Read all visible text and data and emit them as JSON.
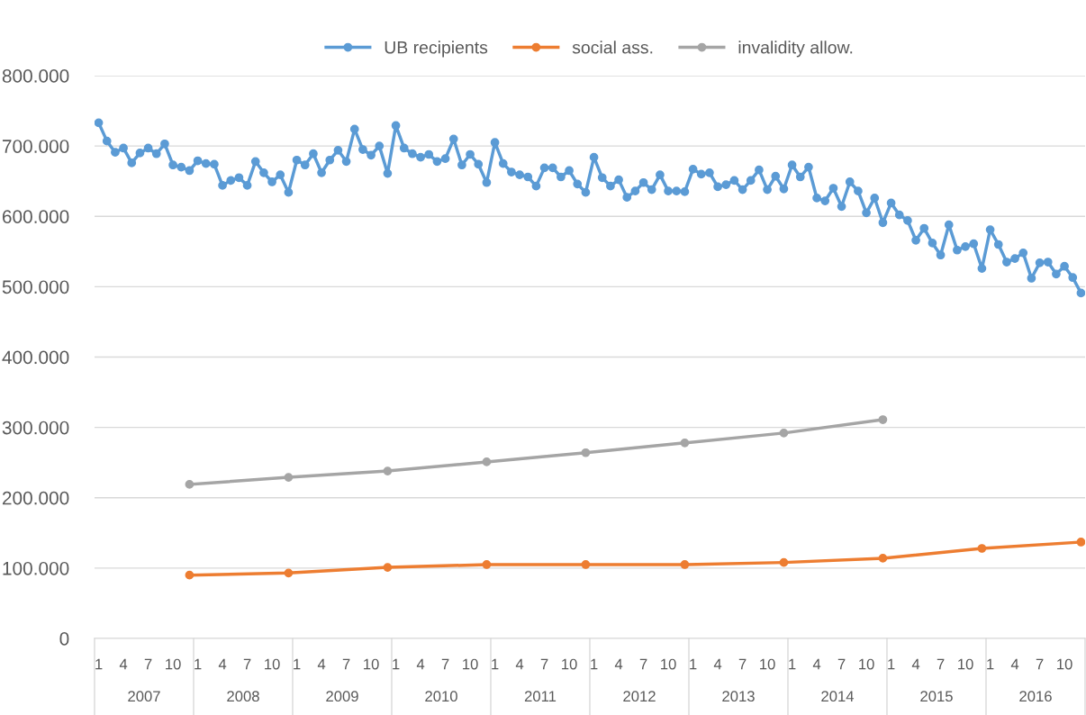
{
  "chart_data": {
    "type": "line",
    "categories": [
      "1",
      null,
      null,
      "4",
      null,
      null,
      "7",
      null,
      null,
      "10",
      null,
      null,
      "1",
      null,
      null,
      "4",
      null,
      null,
      "7",
      null,
      null,
      "10",
      null,
      null,
      "1",
      null,
      null,
      "4",
      null,
      null,
      "7",
      null,
      null,
      "10",
      null,
      null,
      "1",
      null,
      null,
      "4",
      null,
      null,
      "7",
      null,
      null,
      "10",
      null,
      null,
      "1",
      null,
      null,
      "4",
      null,
      null,
      "7",
      null,
      null,
      "10",
      null,
      null,
      "1",
      null,
      null,
      "4",
      null,
      null,
      "7",
      null,
      null,
      "10",
      null,
      null,
      "1",
      null,
      null,
      "4",
      null,
      null,
      "7",
      null,
      null,
      "10",
      null,
      null,
      "1",
      null,
      null,
      "4",
      null,
      null,
      "7",
      null,
      null,
      "10",
      null,
      null,
      "1",
      null,
      null,
      "4",
      null,
      null,
      "7",
      null,
      null,
      "10",
      null,
      null,
      "1",
      null,
      null,
      "4",
      null,
      null,
      "7",
      null,
      null,
      "10",
      null,
      null
    ],
    "annotations": [
      "2007",
      "2008",
      "2009",
      "2010",
      "2011",
      "2012",
      "2013",
      "2014",
      "2015",
      "2016"
    ],
    "series": [
      {
        "name": "UB recipients",
        "color": "#5b9bd5",
        "values": [
          733000,
          707000,
          691000,
          697000,
          676000,
          690000,
          697000,
          689000,
          703000,
          673000,
          670000,
          665000,
          679000,
          675000,
          674000,
          644000,
          651000,
          655000,
          644000,
          678000,
          662000,
          649000,
          659000,
          634000,
          680000,
          673000,
          689000,
          662000,
          680000,
          694000,
          678000,
          724000,
          695000,
          687000,
          700000,
          661000,
          729000,
          697000,
          689000,
          684000,
          688000,
          678000,
          682000,
          710000,
          673000,
          688000,
          674000,
          648000,
          705000,
          675000,
          663000,
          659000,
          656000,
          643000,
          669000,
          669000,
          656000,
          665000,
          646000,
          634000,
          684000,
          655000,
          643000,
          652000,
          627000,
          636000,
          648000,
          638000,
          659000,
          636000,
          636000,
          635000,
          667000,
          660000,
          662000,
          642000,
          645000,
          651000,
          638000,
          651000,
          666000,
          638000,
          657000,
          639000,
          673000,
          656000,
          670000,
          626000,
          622000,
          640000,
          614000,
          649000,
          636000,
          605000,
          626000,
          591000,
          619000,
          602000,
          594000,
          566000,
          583000,
          562000,
          545000,
          588000,
          552000,
          557000,
          561000,
          526000,
          581000,
          560000,
          535000,
          540000,
          548000,
          512000,
          534000,
          535000,
          518000,
          529000,
          513000,
          491000
        ]
      },
      {
        "name": "social ass.",
        "color": "#ed7d31",
        "values": [
          null,
          null,
          null,
          null,
          null,
          null,
          null,
          null,
          null,
          null,
          null,
          90000,
          null,
          null,
          null,
          null,
          null,
          null,
          null,
          null,
          null,
          null,
          null,
          93000,
          null,
          null,
          null,
          null,
          null,
          null,
          null,
          null,
          null,
          null,
          null,
          101000,
          null,
          null,
          null,
          null,
          null,
          null,
          null,
          null,
          null,
          null,
          null,
          105000,
          null,
          null,
          null,
          null,
          null,
          null,
          null,
          null,
          null,
          null,
          null,
          105000,
          null,
          null,
          null,
          null,
          null,
          null,
          null,
          null,
          null,
          null,
          null,
          105000,
          null,
          null,
          null,
          null,
          null,
          null,
          null,
          null,
          null,
          null,
          null,
          108000,
          null,
          null,
          null,
          null,
          null,
          null,
          null,
          null,
          null,
          null,
          null,
          114000,
          null,
          null,
          null,
          null,
          null,
          null,
          null,
          null,
          null,
          null,
          null,
          128000,
          null,
          null,
          null,
          null,
          null,
          null,
          null,
          null,
          null,
          null,
          null,
          137000
        ]
      },
      {
        "name": "invalidity allow.",
        "color": "#a5a5a5",
        "values": [
          null,
          null,
          null,
          null,
          null,
          null,
          null,
          null,
          null,
          null,
          null,
          219000,
          null,
          null,
          null,
          null,
          null,
          null,
          null,
          null,
          null,
          null,
          null,
          229000,
          null,
          null,
          null,
          null,
          null,
          null,
          null,
          null,
          null,
          null,
          null,
          238000,
          null,
          null,
          null,
          null,
          null,
          null,
          null,
          null,
          null,
          null,
          null,
          251000,
          null,
          null,
          null,
          null,
          null,
          null,
          null,
          null,
          null,
          null,
          null,
          264000,
          null,
          null,
          null,
          null,
          null,
          null,
          null,
          null,
          null,
          null,
          null,
          278000,
          null,
          null,
          null,
          null,
          null,
          null,
          null,
          null,
          null,
          null,
          null,
          292000,
          null,
          null,
          null,
          null,
          null,
          null,
          null,
          null,
          null,
          null,
          null,
          311000,
          null,
          null,
          null,
          null,
          null,
          null,
          null,
          null,
          null,
          null,
          null,
          null,
          null,
          null,
          null,
          null,
          null,
          null,
          null,
          null,
          null,
          null,
          null,
          null
        ]
      }
    ],
    "ylim": [
      0,
      800000
    ],
    "yticks": [
      {
        "value": 0,
        "label": "0"
      },
      {
        "value": 100000,
        "label": "100.000"
      },
      {
        "value": 200000,
        "label": "200.000"
      },
      {
        "value": 300000,
        "label": "300.000"
      },
      {
        "value": 400000,
        "label": "400.000"
      },
      {
        "value": 500000,
        "label": "500.000"
      },
      {
        "value": 600000,
        "label": "600.000"
      },
      {
        "value": 700000,
        "label": "700.000"
      },
      {
        "value": 800000,
        "label": "800.000"
      }
    ],
    "grid": "y",
    "legend": "top",
    "marker": "circle",
    "line_style": "solid"
  }
}
